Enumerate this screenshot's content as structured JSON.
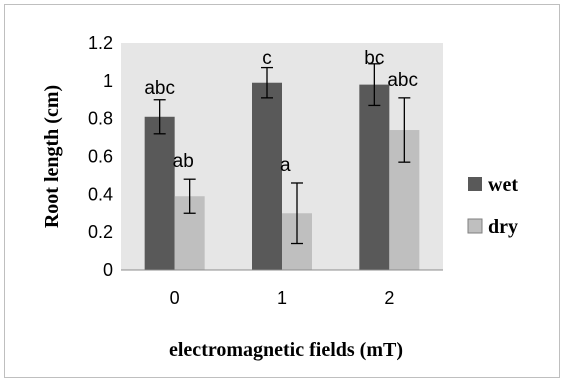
{
  "chart_data": {
    "type": "bar",
    "title": "",
    "xlabel": "electromagnetic fields (mT)",
    "ylabel": "Root length (cm)",
    "categories": [
      "0",
      "1",
      "2"
    ],
    "ylim": [
      0,
      1.2
    ],
    "yticks": [
      "0",
      "0.2",
      "0.4",
      "0.6",
      "0.8",
      "1",
      "1.2"
    ],
    "grid": false,
    "legend_position": "right",
    "series": [
      {
        "name": "wet",
        "color": "#595959",
        "values": [
          0.81,
          0.99,
          0.98
        ],
        "errors": [
          0.09,
          0.08,
          0.11
        ],
        "annotations": [
          "abc",
          "c",
          "bc"
        ]
      },
      {
        "name": "dry",
        "color": "#bfbfbf",
        "values": [
          0.39,
          0.3,
          0.74
        ],
        "errors": [
          0.09,
          0.16,
          0.17
        ],
        "annotations": [
          "ab",
          "a",
          "abc"
        ]
      }
    ],
    "plot_background": "#e6e6e6"
  }
}
